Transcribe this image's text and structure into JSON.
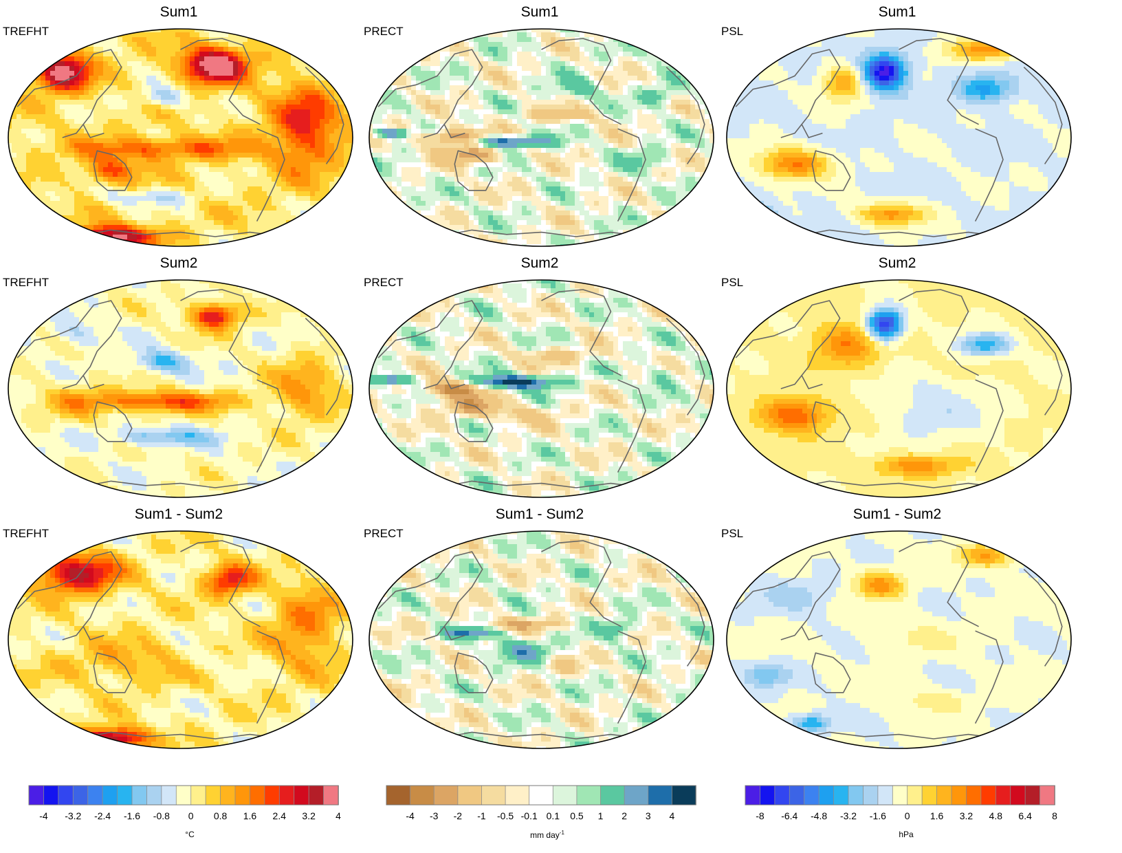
{
  "panels": [
    {
      "id": "p11",
      "title": "Sum1",
      "var": "TREFHT",
      "palette": "temp",
      "field": "t1"
    },
    {
      "id": "p12",
      "title": "Sum1",
      "var": "PRECT",
      "palette": "prec",
      "field": "r1"
    },
    {
      "id": "p13",
      "title": "Sum1",
      "var": "PSL",
      "palette": "psl",
      "field": "s1"
    },
    {
      "id": "p21",
      "title": "Sum2",
      "var": "TREFHT",
      "palette": "temp",
      "field": "t2"
    },
    {
      "id": "p22",
      "title": "Sum2",
      "var": "PRECT",
      "palette": "prec",
      "field": "r2"
    },
    {
      "id": "p23",
      "title": "Sum2",
      "var": "PSL",
      "palette": "psl",
      "field": "s2"
    },
    {
      "id": "p31",
      "title": "Sum1 - Sum2",
      "var": "TREFHT",
      "palette": "temp",
      "field": "t3"
    },
    {
      "id": "p32",
      "title": "Sum1 - Sum2",
      "var": "PRECT",
      "palette": "prec",
      "field": "r3"
    },
    {
      "id": "p33",
      "title": "Sum1 - Sum2",
      "var": "PSL",
      "palette": "psl",
      "field": "s3"
    }
  ],
  "colorbars": [
    {
      "id": "temp",
      "unit": "°C",
      "colors": [
        "#4b1ee6",
        "#1414f0",
        "#3246f0",
        "#3c64e6",
        "#3c82f0",
        "#1ea0f0",
        "#28b4f0",
        "#82c8f0",
        "#aad2f0",
        "#d2e6f8",
        "#ffffc8",
        "#fff08c",
        "#ffd232",
        "#ffb41e",
        "#ff960a",
        "#ff6e00",
        "#ff3c00",
        "#e61e1e",
        "#d20a1e",
        "#b41e28",
        "#f07882"
      ],
      "ticks": [
        "-4",
        "-3.2",
        "-2.4",
        "-1.6",
        "-0.8",
        "0",
        "0.8",
        "1.6",
        "2.4",
        "3.2",
        "4"
      ],
      "tickpos": [
        1,
        3,
        5,
        7,
        9,
        11,
        13,
        15,
        17,
        19,
        21
      ]
    },
    {
      "id": "prec",
      "unit": "mm day",
      "unit_sup": "-1",
      "colors": [
        "#a5642d",
        "#c88c46",
        "#dca564",
        "#f0c882",
        "#f5dca0",
        "#fff0c8",
        "#ffffff",
        "#dcf5dc",
        "#a0e6b4",
        "#5ac8a0",
        "#6ea5c8",
        "#1e6eaa",
        "#0a3c5a"
      ],
      "ticks": [
        "-4",
        "-3",
        "-2",
        "-1",
        "-0.5",
        "-0.1",
        "0.1",
        "0.5",
        "1",
        "2",
        "3",
        "4"
      ],
      "tickpos": [
        1,
        2,
        3,
        4,
        5,
        6,
        7,
        8,
        9,
        10,
        11,
        12
      ]
    },
    {
      "id": "psl",
      "unit": "hPa",
      "colors": [
        "#4b1ee6",
        "#1414f0",
        "#3246f0",
        "#3c64e6",
        "#3c82f0",
        "#1ea0f0",
        "#28b4f0",
        "#82c8f0",
        "#aad2f0",
        "#d2e6f8",
        "#ffffc8",
        "#fff08c",
        "#ffd232",
        "#ffb41e",
        "#ff960a",
        "#ff6e00",
        "#ff3c00",
        "#e61e1e",
        "#d20a1e",
        "#b41e28",
        "#f07882"
      ],
      "ticks": [
        "-8",
        "-6.4",
        "-4.8",
        "-3.2",
        "-1.6",
        "0",
        "1.6",
        "3.2",
        "4.8",
        "6.4",
        "8"
      ],
      "tickpos": [
        1,
        3,
        5,
        7,
        9,
        11,
        13,
        15,
        17,
        19,
        21
      ]
    }
  ]
}
